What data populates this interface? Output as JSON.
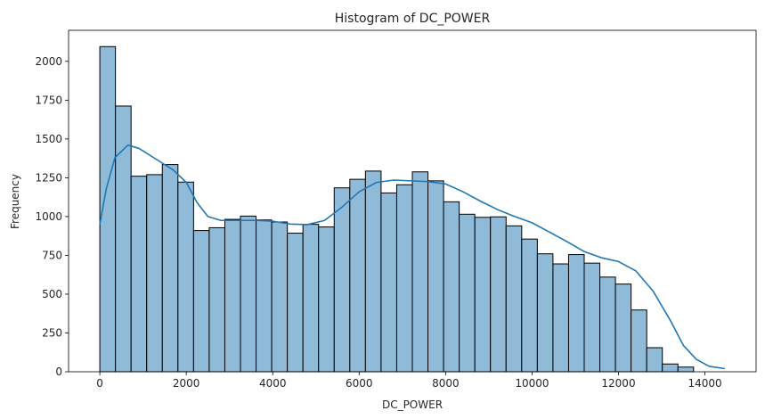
{
  "chart_data": {
    "type": "bar",
    "title": "Histogram of DC_POWER",
    "xlabel": "DC_POWER",
    "ylabel": "Frequency",
    "bin_width": 361.5,
    "bin_start": 0,
    "values": [
      2095,
      1712,
      1260,
      1270,
      1335,
      1222,
      910,
      928,
      982,
      1003,
      978,
      965,
      893,
      950,
      933,
      1185,
      1240,
      1293,
      1152,
      1205,
      1288,
      1230,
      1095,
      1015,
      995,
      998,
      940,
      855,
      760,
      695,
      755,
      700,
      610,
      565,
      398,
      155,
      50,
      30
    ],
    "kde": [
      [
        0,
        950
      ],
      [
        150,
        1180
      ],
      [
        350,
        1380
      ],
      [
        650,
        1460
      ],
      [
        900,
        1440
      ],
      [
        1300,
        1370
      ],
      [
        1700,
        1300
      ],
      [
        2000,
        1220
      ],
      [
        2250,
        1090
      ],
      [
        2500,
        1000
      ],
      [
        2800,
        975
      ],
      [
        3200,
        975
      ],
      [
        3600,
        975
      ],
      [
        4000,
        970
      ],
      [
        4400,
        952
      ],
      [
        4800,
        948
      ],
      [
        5200,
        975
      ],
      [
        5600,
        1060
      ],
      [
        6000,
        1160
      ],
      [
        6400,
        1220
      ],
      [
        6800,
        1235
      ],
      [
        7200,
        1230
      ],
      [
        7600,
        1225
      ],
      [
        8000,
        1210
      ],
      [
        8400,
        1160
      ],
      [
        8800,
        1100
      ],
      [
        9200,
        1045
      ],
      [
        9600,
        1000
      ],
      [
        10000,
        960
      ],
      [
        10400,
        900
      ],
      [
        10800,
        840
      ],
      [
        11200,
        775
      ],
      [
        11600,
        735
      ],
      [
        12000,
        710
      ],
      [
        12400,
        650
      ],
      [
        12800,
        520
      ],
      [
        13200,
        330
      ],
      [
        13500,
        170
      ],
      [
        13800,
        80
      ],
      [
        14100,
        35
      ],
      [
        14460,
        20
      ]
    ],
    "xticks": [
      0,
      2000,
      4000,
      6000,
      8000,
      10000,
      12000,
      14000
    ],
    "yticks": [
      0,
      250,
      500,
      750,
      1000,
      1250,
      1500,
      1750,
      2000
    ],
    "xlim": [
      -723,
      15183
    ],
    "ylim": [
      0,
      2200
    ],
    "colors": {
      "bar_fill": "#8fbad8",
      "bar_edge": "#000000",
      "kde_line": "#1f77b4",
      "axes": "#000000",
      "text": "#262626"
    }
  }
}
